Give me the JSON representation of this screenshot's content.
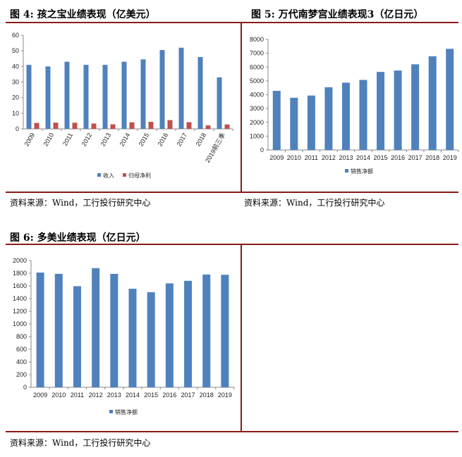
{
  "figures": [
    {
      "title": "图 4:  孩之宝业绩表现（亿美元）",
      "source": "资料来源：Wind，工行投行研究中心"
    },
    {
      "title": "图 5:  万代南梦宫业绩表现3（亿日元）",
      "source": "资料来源：Wind，工行投行研究中心"
    },
    {
      "title": "图 6:  多美业绩表现（亿日元）",
      "source": "资料来源：Wind，工行投行研究中心"
    }
  ],
  "colors": {
    "primary": "#4f81bd",
    "secondary": "#c0504d",
    "rule": "#8b1a1a"
  },
  "chart_data": [
    {
      "type": "bar",
      "categories": [
        "2009",
        "2010",
        "2011",
        "2012",
        "2013",
        "2014",
        "2015",
        "2016",
        "2017",
        "2018",
        "2019前三季"
      ],
      "series": [
        {
          "name": "收入",
          "values": [
            41,
            40,
            43,
            41,
            41,
            43,
            44.5,
            50.5,
            52,
            46,
            33
          ]
        },
        {
          "name": "归母净利",
          "values": [
            3.8,
            4,
            3.9,
            3.4,
            2.9,
            4.2,
            4.5,
            5.6,
            4.3,
            2.2,
            2.8
          ]
        }
      ],
      "ylim": [
        0,
        60
      ],
      "yticks": [
        0,
        10,
        20,
        30,
        40,
        50,
        60
      ],
      "legend": "bottom"
    },
    {
      "type": "bar",
      "categories": [
        "2009",
        "2010",
        "2011",
        "2012",
        "2013",
        "2014",
        "2015",
        "2016",
        "2017",
        "2018",
        "2019"
      ],
      "series": [
        {
          "name": "销售净额",
          "values": [
            4280,
            3780,
            3940,
            4540,
            4870,
            5070,
            5650,
            5750,
            6200,
            6780,
            7320
          ]
        }
      ],
      "ylim": [
        0,
        8000
      ],
      "yticks": [
        0,
        1000,
        2000,
        3000,
        4000,
        5000,
        6000,
        7000,
        8000
      ],
      "legend": "bottom"
    },
    {
      "type": "bar",
      "categories": [
        "2009",
        "2010",
        "2011",
        "2012",
        "2013",
        "2014",
        "2015",
        "2016",
        "2017",
        "2018",
        "2019"
      ],
      "series": [
        {
          "name": "销售净额",
          "values": [
            1810,
            1790,
            1595,
            1880,
            1790,
            1555,
            1500,
            1640,
            1680,
            1780,
            1775
          ]
        }
      ],
      "ylim": [
        0,
        2000
      ],
      "yticks": [
        0,
        200,
        400,
        600,
        800,
        1000,
        1200,
        1400,
        1600,
        1800,
        2000
      ],
      "legend": "bottom"
    }
  ]
}
